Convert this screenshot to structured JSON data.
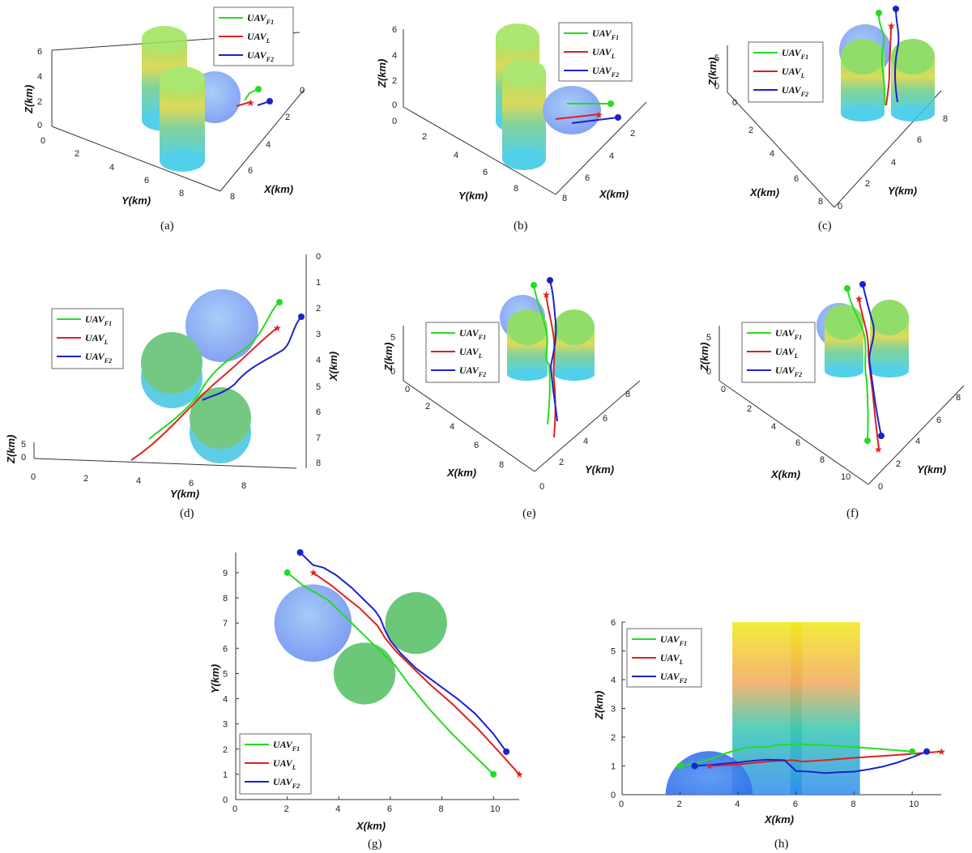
{
  "legend": {
    "f1": "UAV",
    "f1_sub": "F1",
    "l": "UAV",
    "l_sub": "L",
    "f2": "UAV",
    "f2_sub": "F2"
  },
  "colors": {
    "f1": "#22dd22",
    "l": "#e02020",
    "f2": "#1a22cc",
    "obstacle_green": "#5cc26a",
    "sphere": "#7aa8f2"
  },
  "captions": [
    "(a)",
    "(b)",
    "(c)",
    "(d)",
    "(e)",
    "(f)",
    "(g)",
    "(h)"
  ],
  "axis_labels": {
    "x": "X(km)",
    "y": "Y(km)",
    "z": "Z(km)"
  },
  "chart_data": [
    {
      "panel": "(a)",
      "type": "line",
      "view": "3d",
      "xlabel": "X(km)",
      "ylabel": "Y(km)",
      "zlabel": "Z(km)",
      "x_ticks": [
        "0",
        "2",
        "4",
        "6",
        "8"
      ],
      "y_ticks": [
        "0",
        "2",
        "4",
        "6",
        "8"
      ],
      "z_ticks": [
        "0",
        "2",
        "4",
        "6"
      ]
    },
    {
      "panel": "(b)",
      "type": "line",
      "view": "3d",
      "xlabel": "X(km)",
      "ylabel": "Y(km)",
      "zlabel": "Z(km)",
      "x_ticks": [
        "2",
        "4",
        "6",
        "8"
      ],
      "y_ticks": [
        "0",
        "2",
        "4",
        "6",
        "8"
      ],
      "z_ticks": [
        "0",
        "2",
        "4",
        "6"
      ]
    },
    {
      "panel": "(c)",
      "type": "line",
      "view": "3d",
      "xlabel": "X(km)",
      "ylabel": "Y(km)",
      "zlabel": "Z(km)",
      "x_ticks": [
        "0",
        "2",
        "4",
        "6",
        "8"
      ],
      "y_ticks": [
        "0",
        "2",
        "4",
        "6",
        "8"
      ],
      "z_ticks": [
        "0",
        "5"
      ]
    },
    {
      "panel": "(d)",
      "type": "line",
      "view": "3d",
      "xlabel": "X(km)",
      "ylabel": "Y(km)",
      "zlabel": "Z(km)",
      "x_ticks": [
        "0",
        "1",
        "2",
        "3",
        "4",
        "5",
        "6",
        "7",
        "8"
      ],
      "y_ticks": [
        "0",
        "2",
        "4",
        "6",
        "8"
      ],
      "z_ticks": [
        "0",
        "5"
      ]
    },
    {
      "panel": "(e)",
      "type": "line",
      "view": "3d",
      "xlabel": "X(km)",
      "ylabel": "Y(km)",
      "zlabel": "Z(km)",
      "x_ticks": [
        "0",
        "2",
        "4",
        "6",
        "8"
      ],
      "y_ticks": [
        "0",
        "2",
        "4",
        "6",
        "8"
      ],
      "z_ticks": [
        "0",
        "5"
      ]
    },
    {
      "panel": "(f)",
      "type": "line",
      "view": "3d",
      "xlabel": "X(km)",
      "ylabel": "Y(km)",
      "zlabel": "Z(km)",
      "x_ticks": [
        "0",
        "2",
        "4",
        "6",
        "8",
        "10"
      ],
      "y_ticks": [
        "0",
        "2",
        "4",
        "6",
        "8"
      ],
      "z_ticks": [
        "0",
        "5"
      ]
    },
    {
      "panel": "(g)",
      "type": "line",
      "view": "top",
      "xlabel": "X(km)",
      "ylabel": "Y(km)",
      "xlim": [
        0,
        11
      ],
      "ylim": [
        0,
        9.8
      ],
      "x_ticks": [
        "0",
        "2",
        "4",
        "6",
        "8",
        "10"
      ],
      "y_ticks": [
        "0",
        "1",
        "2",
        "3",
        "4",
        "5",
        "6",
        "7",
        "8",
        "9"
      ],
      "obstacles": [
        {
          "kind": "sphere",
          "cx": 3,
          "cy": 7,
          "r": 1.5
        },
        {
          "kind": "cylinder",
          "cx": 5,
          "cy": 5,
          "r": 1.2
        },
        {
          "kind": "cylinder",
          "cx": 7,
          "cy": 7,
          "r": 1.2
        }
      ],
      "series": [
        {
          "name": "UAV_F1",
          "color": "#22dd22",
          "marker": "dot",
          "x": [
            10,
            9.2,
            8.4,
            7.5,
            6.7,
            6.2,
            5.6,
            5.1,
            4.6,
            4.0,
            3.6,
            3.1,
            2.6,
            2.0
          ],
          "y": [
            1.0,
            1.8,
            2.6,
            3.6,
            4.6,
            5.3,
            5.9,
            6.4,
            6.9,
            7.5,
            7.9,
            8.2,
            8.5,
            9.0
          ]
        },
        {
          "name": "UAV_L",
          "color": "#e02020",
          "marker": "star",
          "x": [
            11,
            10.3,
            9.4,
            8.4,
            7.5,
            6.7,
            6.2,
            5.8,
            5.5,
            5.2,
            4.8,
            4.3,
            3.7,
            3.0
          ],
          "y": [
            1.0,
            1.8,
            2.8,
            3.8,
            4.6,
            5.4,
            5.9,
            6.4,
            6.9,
            7.2,
            7.6,
            8.0,
            8.5,
            9.0
          ]
        },
        {
          "name": "UAV_F2",
          "color": "#1a22cc",
          "marker": "dot",
          "x": [
            10.5,
            10.0,
            9.3,
            8.6,
            7.8,
            7.0,
            6.4,
            6.0,
            5.8,
            5.6,
            5.4,
            5.0,
            4.5,
            3.9,
            3.4,
            3.0,
            2.5
          ],
          "y": [
            1.9,
            2.6,
            3.4,
            4.0,
            4.6,
            5.2,
            5.8,
            6.3,
            6.7,
            7.2,
            7.5,
            7.9,
            8.4,
            8.9,
            9.2,
            9.3,
            9.8
          ]
        }
      ]
    },
    {
      "panel": "(h)",
      "type": "line",
      "view": "side",
      "xlabel": "X(km)",
      "ylabel": "Z(km)",
      "xlim": [
        0,
        11
      ],
      "ylim": [
        0,
        6
      ],
      "x_ticks": [
        "0",
        "2",
        "4",
        "6",
        "8",
        "10"
      ],
      "y_ticks": [
        "0",
        "1",
        "2",
        "3",
        "4",
        "5",
        "6"
      ],
      "obstacles": [
        {
          "kind": "sphere",
          "cx": 3,
          "cz": 0,
          "r": 1.5
        },
        {
          "kind": "cylinder",
          "x0": 3.8,
          "x1": 6.2,
          "h": 6
        },
        {
          "kind": "cylinder",
          "x0": 5.8,
          "x1": 8.2,
          "h": 6
        }
      ],
      "series": [
        {
          "name": "UAV_F1",
          "color": "#22dd22",
          "marker": "dot",
          "x": [
            10,
            9,
            8,
            7,
            6,
            5.3,
            5,
            4.5,
            4.2,
            3.6,
            3.0,
            2.5,
            2.0
          ],
          "z": [
            1.5,
            1.58,
            1.66,
            1.72,
            1.76,
            1.72,
            1.65,
            1.65,
            1.62,
            1.45,
            1.22,
            1.08,
            1.0
          ]
        },
        {
          "name": "UAV_L",
          "color": "#e02020",
          "marker": "star",
          "x": [
            11,
            10,
            9,
            8,
            7,
            6.2,
            5.9,
            5.0,
            4.0,
            3.0
          ],
          "z": [
            1.5,
            1.42,
            1.35,
            1.28,
            1.2,
            1.15,
            1.2,
            1.15,
            1.05,
            1.0
          ]
        },
        {
          "name": "UAV_F2",
          "color": "#1a22cc",
          "marker": "dot",
          "x": [
            10.5,
            10.0,
            9.5,
            9.0,
            8.5,
            8.0,
            7.5,
            7.0,
            6.5,
            6.0,
            5.6,
            5.0,
            4.5,
            4.0,
            3.5,
            3.0,
            2.5
          ],
          "z": [
            1.5,
            1.3,
            1.12,
            0.98,
            0.88,
            0.8,
            0.78,
            0.75,
            0.8,
            0.82,
            1.2,
            1.22,
            1.18,
            1.12,
            1.08,
            1.03,
            1.0
          ]
        }
      ]
    }
  ]
}
